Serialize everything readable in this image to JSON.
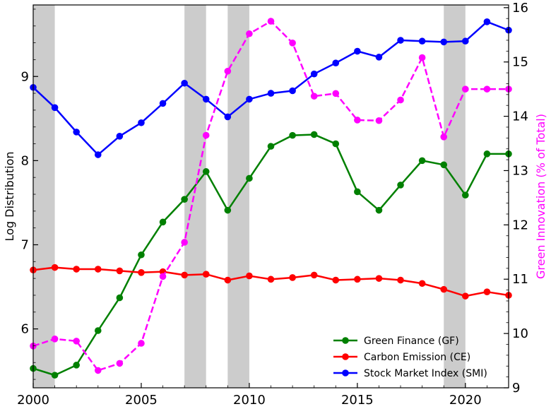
{
  "chart_data": {
    "type": "line",
    "x": [
      2000,
      2001,
      2002,
      2003,
      2004,
      2005,
      2006,
      2007,
      2008,
      2009,
      2010,
      2011,
      2012,
      2013,
      2014,
      2015,
      2016,
      2017,
      2018,
      2019,
      2020,
      2021,
      2022
    ],
    "xlim": [
      2000,
      2022
    ],
    "ylim_left": [
      5.3,
      9.85
    ],
    "ylim_right": [
      9,
      16.05
    ],
    "ylabel_left": "Log Distribution",
    "ylabel_right": "Green Innovation (% of Total)",
    "xticks": [
      "2000",
      "2005",
      "2010",
      "2015",
      "2020"
    ],
    "yticks_left": [
      "6",
      "7",
      "8",
      "9"
    ],
    "yticks_right": [
      "9",
      "10",
      "11",
      "12",
      "13",
      "14",
      "15",
      "16"
    ],
    "shaded_periods": [
      [
        2000,
        2001
      ],
      [
        2007,
        2008
      ],
      [
        2009,
        2010
      ],
      [
        2019,
        2020
      ]
    ],
    "series": [
      {
        "name": "Green Finance (GF)",
        "axis": "left",
        "color": "#008000",
        "style": "solid",
        "values": [
          5.53,
          5.45,
          5.57,
          5.98,
          6.37,
          6.88,
          7.27,
          7.54,
          7.87,
          7.41,
          7.79,
          8.17,
          8.3,
          8.31,
          8.2,
          7.63,
          7.41,
          7.71,
          8.0,
          7.95,
          7.59,
          8.08,
          8.08
        ]
      },
      {
        "name": "Carbon Emission (CE)",
        "axis": "left",
        "color": "#ff0000",
        "style": "solid",
        "values": [
          6.7,
          6.73,
          6.71,
          6.71,
          6.69,
          6.67,
          6.68,
          6.64,
          6.65,
          6.58,
          6.63,
          6.59,
          6.61,
          6.64,
          6.58,
          6.59,
          6.6,
          6.58,
          6.54,
          6.47,
          6.39,
          6.44,
          6.4
        ]
      },
      {
        "name": "Stock Market Index (SMI)",
        "axis": "left",
        "color": "#0000ff",
        "style": "solid",
        "values": [
          8.87,
          8.63,
          8.34,
          8.07,
          8.29,
          8.45,
          8.68,
          8.92,
          8.73,
          8.52,
          8.73,
          8.8,
          8.83,
          9.03,
          9.16,
          9.3,
          9.23,
          9.43,
          9.42,
          9.41,
          9.42,
          9.65,
          9.55
        ]
      },
      {
        "name": "",
        "axis": "right",
        "color": "#ff00ff",
        "style": "dashed",
        "values": [
          9.77,
          9.9,
          9.86,
          9.32,
          9.45,
          9.82,
          11.05,
          11.68,
          13.65,
          14.83,
          15.52,
          15.75,
          15.35,
          14.37,
          14.42,
          13.93,
          13.92,
          14.3,
          15.08,
          13.62,
          14.5,
          14.5,
          14.5
        ]
      }
    ],
    "legend": {
      "placement": "lower-right",
      "entries": [
        "Green Finance (GF)",
        "Carbon Emission (CE)",
        "Stock Market Index (SMI)"
      ]
    },
    "grid": false
  }
}
